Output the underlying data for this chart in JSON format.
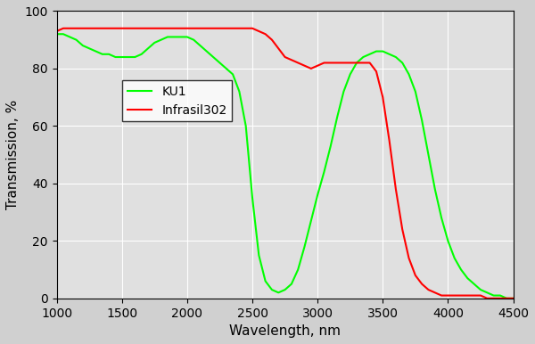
{
  "title": "",
  "xlabel": "Wavelength, nm",
  "ylabel": "Transmission, %",
  "xlim": [
    1000,
    4500
  ],
  "ylim": [
    0,
    100
  ],
  "xticks": [
    1000,
    1500,
    2000,
    2500,
    3000,
    3500,
    4000,
    4500
  ],
  "yticks": [
    0,
    20,
    40,
    60,
    80,
    100
  ],
  "ku1_color": "#00ff00",
  "infrasil_color": "#ff0000",
  "ku1_label": "KU1",
  "infrasil_label": "Infrasil302",
  "background_color": "#e8e8e8",
  "grid_color": "#ffffff",
  "ku1_x": [
    1000,
    1050,
    1100,
    1150,
    1200,
    1250,
    1300,
    1350,
    1400,
    1450,
    1500,
    1550,
    1600,
    1650,
    1700,
    1750,
    1800,
    1850,
    1900,
    1950,
    2000,
    2050,
    2100,
    2150,
    2200,
    2250,
    2300,
    2350,
    2400,
    2450,
    2500,
    2550,
    2600,
    2650,
    2700,
    2750,
    2800,
    2850,
    2900,
    2950,
    3000,
    3050,
    3100,
    3150,
    3200,
    3250,
    3300,
    3350,
    3400,
    3450,
    3500,
    3550,
    3600,
    3650,
    3700,
    3750,
    3800,
    3850,
    3900,
    3950,
    4000,
    4050,
    4100,
    4150,
    4200,
    4250,
    4300,
    4350,
    4400,
    4450,
    4500
  ],
  "ku1_y": [
    92,
    92,
    91,
    90,
    88,
    87,
    86,
    85,
    85,
    84,
    84,
    84,
    84,
    85,
    87,
    89,
    90,
    91,
    91,
    91,
    91,
    90,
    88,
    86,
    84,
    82,
    80,
    78,
    72,
    60,
    35,
    15,
    6,
    3,
    2,
    3,
    5,
    10,
    18,
    27,
    36,
    44,
    53,
    63,
    72,
    78,
    82,
    84,
    85,
    86,
    86,
    85,
    84,
    82,
    78,
    72,
    62,
    50,
    38,
    28,
    20,
    14,
    10,
    7,
    5,
    3,
    2,
    1,
    1,
    0,
    0
  ],
  "infrasil_x": [
    1000,
    1050,
    1100,
    1150,
    1200,
    1250,
    1300,
    1350,
    1400,
    1450,
    1500,
    1550,
    1600,
    1650,
    1700,
    1750,
    1800,
    1850,
    1900,
    1950,
    2000,
    2050,
    2100,
    2150,
    2200,
    2250,
    2300,
    2350,
    2400,
    2450,
    2500,
    2550,
    2600,
    2650,
    2700,
    2750,
    2800,
    2850,
    2900,
    2950,
    3000,
    3050,
    3100,
    3150,
    3200,
    3250,
    3300,
    3350,
    3400,
    3450,
    3500,
    3550,
    3600,
    3650,
    3700,
    3750,
    3800,
    3850,
    3900,
    3950,
    4000,
    4050,
    4100,
    4150,
    4200,
    4250,
    4300,
    4350,
    4400,
    4450,
    4500
  ],
  "infrasil_y": [
    93,
    94,
    94,
    94,
    94,
    94,
    94,
    94,
    94,
    94,
    94,
    94,
    94,
    94,
    94,
    94,
    94,
    94,
    94,
    94,
    94,
    94,
    94,
    94,
    94,
    94,
    94,
    94,
    94,
    94,
    94,
    93,
    92,
    90,
    87,
    84,
    83,
    82,
    81,
    80,
    81,
    82,
    82,
    82,
    82,
    82,
    82,
    82,
    82,
    79,
    70,
    55,
    38,
    24,
    14,
    8,
    5,
    3,
    2,
    1,
    1,
    1,
    1,
    1,
    1,
    1,
    0,
    0,
    0,
    0,
    0
  ]
}
